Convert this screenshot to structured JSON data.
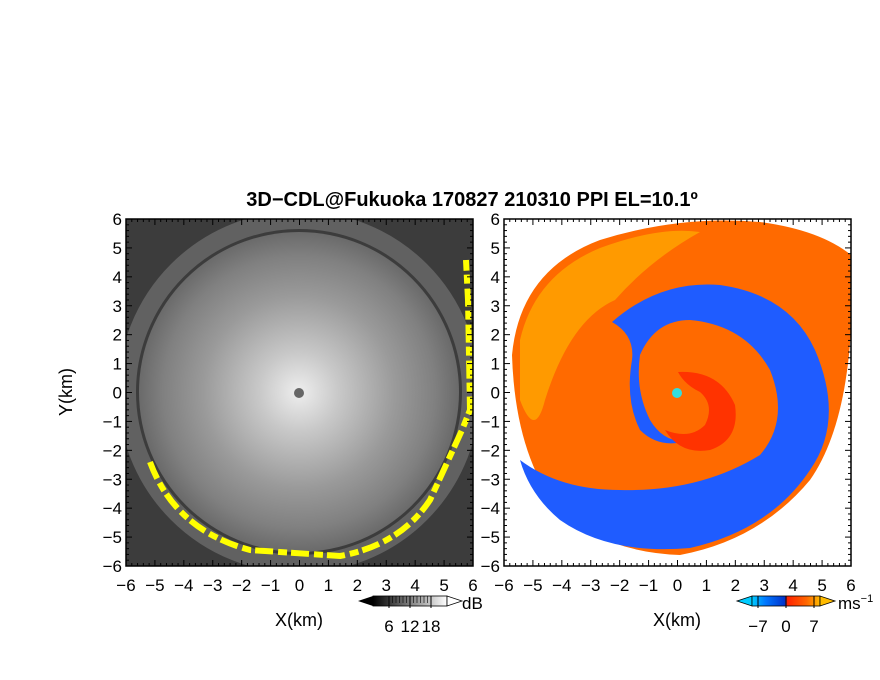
{
  "title": "3D−CDL@Fukuoka 170827 210310 PPI EL=10.1º",
  "chart_data": [
    {
      "type": "heatmap",
      "panel": "left",
      "quantity": "SNR",
      "xlabel": "X(km)",
      "ylabel": "Y(km)",
      "xlim": [
        -6,
        6
      ],
      "ylim": [
        -6,
        6
      ],
      "xticks": [
        "−6",
        "−5",
        "−4",
        "−3",
        "−2",
        "−1",
        "0",
        "1",
        "2",
        "3",
        "4",
        "5",
        "6"
      ],
      "yticks": [
        "6",
        "5",
        "4",
        "3",
        "2",
        "1",
        "0",
        "−1",
        "−2",
        "−3",
        "−4",
        "−5",
        "−6"
      ],
      "colorbar": {
        "unit": "dB",
        "ticks": [
          6,
          12,
          18
        ],
        "tick_labels": [
          "6",
          "12",
          "18"
        ],
        "colors": [
          "#000000",
          "#ffffff"
        ],
        "extend": "both"
      },
      "scan_radius_km": 5.2,
      "edge_highlight_color": "#ffff00",
      "center_marker_color": "#666666"
    },
    {
      "type": "heatmap",
      "panel": "right",
      "quantity": "Doppler velocity",
      "xlabel": "X(km)",
      "xlim": [
        -6,
        6
      ],
      "ylim": [
        -6,
        6
      ],
      "xticks": [
        "−6",
        "−5",
        "−4",
        "−3",
        "−2",
        "−1",
        "0",
        "1",
        "2",
        "3",
        "4",
        "5",
        "6"
      ],
      "yticks": [
        "6",
        "5",
        "4",
        "3",
        "2",
        "1",
        "0",
        "−1",
        "−2",
        "−3",
        "−4",
        "−5",
        "−6"
      ],
      "colorbar": {
        "unit": "ms",
        "unit_exponent": "−1",
        "ticks": [
          -7,
          0,
          7
        ],
        "tick_labels": [
          "−7",
          "0",
          "7"
        ],
        "colors": [
          "#00ccff",
          "#0066ff",
          "#0033cc",
          "#ff3300",
          "#ff6600",
          "#ffaa00"
        ],
        "extend": "both"
      },
      "center_marker_color": "#33dddd"
    }
  ]
}
